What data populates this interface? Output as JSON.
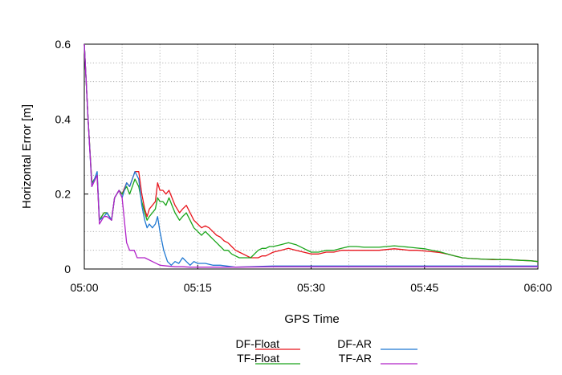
{
  "chart_data": {
    "type": "line",
    "title": "",
    "xlabel": "GPS Time",
    "ylabel": "Horizontal Error [m]",
    "xlim": [
      0,
      60
    ],
    "ylim": [
      0,
      0.6
    ],
    "x_ticks": [
      {
        "value": 0,
        "label": "05:00"
      },
      {
        "value": 15,
        "label": "05:15"
      },
      {
        "value": 30,
        "label": "05:30"
      },
      {
        "value": 45,
        "label": "05:45"
      },
      {
        "value": 60,
        "label": "06:00"
      }
    ],
    "x_minor_ticks": [
      5,
      10,
      20,
      25,
      35,
      40,
      50,
      55
    ],
    "y_ticks": [
      {
        "value": 0,
        "label": "0"
      },
      {
        "value": 0.2,
        "label": "0.2"
      },
      {
        "value": 0.4,
        "label": "0.4"
      },
      {
        "value": 0.6,
        "label": "0.6"
      }
    ],
    "y_minor_ticks": [
      0.05,
      0.1,
      0.15,
      0.25,
      0.3,
      0.35,
      0.45,
      0.5,
      0.55
    ],
    "grid": true,
    "legend_position": "bottom",
    "series": [
      {
        "name": "DF-Float",
        "color": "#e8141c",
        "x": [
          0,
          0.5,
          1,
          1.7,
          2,
          2.6,
          3,
          3.6,
          4,
          4.6,
          5,
          5.6,
          6,
          6.7,
          7.2,
          7.6,
          8,
          8.3,
          8.6,
          9,
          9.4,
          9.7,
          10,
          10.4,
          10.8,
          11.2,
          11.6,
          12,
          12.6,
          13,
          13.5,
          14,
          14.5,
          15,
          15.5,
          16,
          16.5,
          17,
          17.5,
          18,
          18.5,
          19,
          19.5,
          20,
          20.5,
          21,
          21.5,
          22,
          22.5,
          23,
          23.5,
          24,
          24.5,
          25,
          26,
          27,
          28,
          29,
          30,
          31,
          32,
          33,
          34,
          35,
          36,
          37,
          38,
          39,
          40,
          41,
          42,
          43,
          44,
          45,
          46,
          47,
          48,
          49,
          50,
          51,
          52,
          53,
          54,
          55,
          56,
          57,
          58,
          59,
          60
        ],
        "y": [
          0.6,
          0.4,
          0.23,
          0.25,
          0.13,
          0.15,
          0.15,
          0.13,
          0.19,
          0.21,
          0.2,
          0.23,
          0.22,
          0.26,
          0.26,
          0.2,
          0.16,
          0.14,
          0.16,
          0.17,
          0.18,
          0.23,
          0.21,
          0.21,
          0.2,
          0.21,
          0.19,
          0.17,
          0.15,
          0.16,
          0.17,
          0.15,
          0.13,
          0.12,
          0.11,
          0.115,
          0.11,
          0.1,
          0.09,
          0.085,
          0.075,
          0.07,
          0.06,
          0.05,
          0.045,
          0.04,
          0.035,
          0.03,
          0.03,
          0.03,
          0.035,
          0.035,
          0.04,
          0.045,
          0.05,
          0.055,
          0.05,
          0.045,
          0.04,
          0.04,
          0.045,
          0.045,
          0.05,
          0.05,
          0.05,
          0.05,
          0.05,
          0.05,
          0.052,
          0.054,
          0.052,
          0.05,
          0.05,
          0.048,
          0.046,
          0.044,
          0.04,
          0.035,
          0.03,
          0.028,
          0.027,
          0.026,
          0.025,
          0.025,
          0.025,
          0.024,
          0.023,
          0.022,
          0.02
        ]
      },
      {
        "name": "DF-AR",
        "color": "#1f78d2",
        "x": [
          0,
          0.5,
          1,
          1.7,
          2,
          2.6,
          3,
          3.6,
          4,
          4.6,
          5,
          5.6,
          6,
          6.7,
          7.2,
          7.6,
          8,
          8.3,
          8.6,
          9,
          9.4,
          9.7,
          10,
          10.5,
          11,
          11.5,
          12,
          12.5,
          13,
          13.5,
          14,
          14.5,
          15,
          16,
          17,
          18,
          20,
          25,
          30,
          35,
          40,
          45,
          50,
          55,
          60
        ],
        "y": [
          0.6,
          0.4,
          0.22,
          0.26,
          0.13,
          0.14,
          0.15,
          0.13,
          0.19,
          0.21,
          0.19,
          0.23,
          0.22,
          0.26,
          0.24,
          0.17,
          0.13,
          0.11,
          0.12,
          0.11,
          0.12,
          0.14,
          0.1,
          0.05,
          0.02,
          0.01,
          0.02,
          0.015,
          0.03,
          0.02,
          0.01,
          0.02,
          0.015,
          0.015,
          0.01,
          0.01,
          0.005,
          0.008,
          0.008,
          0.008,
          0.008,
          0.008,
          0.008,
          0.008,
          0.008
        ]
      },
      {
        "name": "TF-Float",
        "color": "#1aa51a",
        "x": [
          0,
          0.5,
          1,
          1.7,
          2,
          2.6,
          3,
          3.6,
          4,
          4.6,
          5,
          5.6,
          6,
          6.7,
          7.2,
          7.6,
          8,
          8.3,
          8.6,
          9,
          9.4,
          9.7,
          10,
          10.4,
          10.8,
          11.2,
          11.6,
          12,
          12.6,
          13,
          13.5,
          14,
          14.5,
          15,
          15.5,
          16,
          16.5,
          17,
          17.5,
          18,
          18.5,
          19,
          19.5,
          20,
          20.5,
          21,
          21.5,
          22,
          22.5,
          23,
          23.5,
          24,
          24.5,
          25,
          26,
          27,
          28,
          29,
          30,
          31,
          32,
          33,
          34,
          35,
          36,
          37,
          38,
          39,
          40,
          41,
          42,
          43,
          44,
          45,
          46,
          47,
          48,
          49,
          50,
          51,
          52,
          53,
          54,
          55,
          56,
          57,
          58,
          59,
          60
        ],
        "y": [
          0.6,
          0.4,
          0.23,
          0.25,
          0.13,
          0.15,
          0.15,
          0.13,
          0.19,
          0.21,
          0.2,
          0.22,
          0.2,
          0.24,
          0.22,
          0.18,
          0.15,
          0.13,
          0.14,
          0.15,
          0.16,
          0.19,
          0.18,
          0.18,
          0.17,
          0.19,
          0.17,
          0.15,
          0.13,
          0.14,
          0.15,
          0.13,
          0.11,
          0.1,
          0.09,
          0.1,
          0.09,
          0.08,
          0.07,
          0.06,
          0.05,
          0.05,
          0.04,
          0.035,
          0.03,
          0.03,
          0.03,
          0.03,
          0.04,
          0.05,
          0.055,
          0.055,
          0.06,
          0.06,
          0.065,
          0.07,
          0.065,
          0.055,
          0.045,
          0.045,
          0.05,
          0.05,
          0.055,
          0.06,
          0.06,
          0.058,
          0.058,
          0.058,
          0.06,
          0.062,
          0.06,
          0.058,
          0.056,
          0.054,
          0.05,
          0.046,
          0.04,
          0.035,
          0.03,
          0.028,
          0.027,
          0.026,
          0.026,
          0.025,
          0.025,
          0.024,
          0.023,
          0.022,
          0.02
        ]
      },
      {
        "name": "TF-AR",
        "color": "#b023c8",
        "x": [
          0,
          0.5,
          1,
          1.7,
          2,
          2.6,
          3,
          3.6,
          4,
          4.6,
          5,
          5.6,
          6,
          6.6,
          7,
          8,
          9,
          10,
          11,
          12,
          13,
          14,
          15,
          20,
          25,
          30,
          35,
          40,
          45,
          50,
          55,
          60
        ],
        "y": [
          0.6,
          0.4,
          0.22,
          0.25,
          0.12,
          0.14,
          0.14,
          0.13,
          0.19,
          0.21,
          0.19,
          0.07,
          0.05,
          0.05,
          0.03,
          0.03,
          0.02,
          0.01,
          0.008,
          0.006,
          0.006,
          0.005,
          0.005,
          0.005,
          0.006,
          0.006,
          0.006,
          0.006,
          0.006,
          0.006,
          0.006,
          0.006
        ]
      }
    ]
  }
}
